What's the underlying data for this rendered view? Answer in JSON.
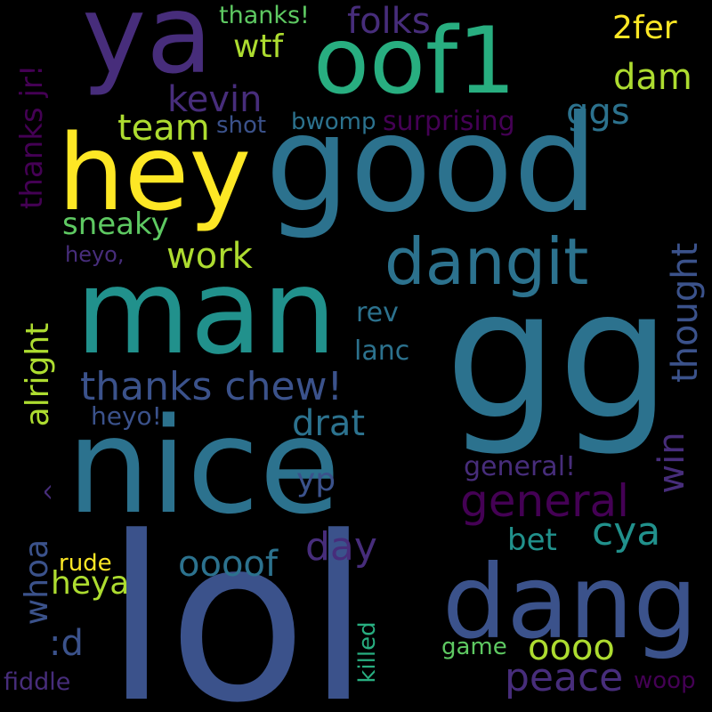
{
  "palette": {
    "background": "#000000",
    "dark_purple": "#440154",
    "purple": "#472d7b",
    "indigo": "#3b528b",
    "blue": "#2c728e",
    "teal": "#21918c",
    "green_teal": "#28ae80",
    "green": "#5ec962",
    "lime": "#addc30",
    "yellow": "#fde725"
  },
  "words": {
    "lol": "lol",
    "gg": "gg",
    "good": "good",
    "nice": "nice",
    "man": "man",
    "hey": "hey",
    "ya": "ya",
    "oof1": "oof1",
    "dang": "dang",
    "dangit": "dangit",
    "thanks_chew": "thanks chew!",
    "general": "general",
    "general_excl": "general!",
    "cya": "cya",
    "peace": "peace",
    "oooof": "oooof",
    "oooo": "oooo",
    "day": "day",
    "bet": "bet",
    "heya": "heya",
    "drat": "drat",
    "yp": "yp",
    "heyo_excl": "heyo!",
    "heyo_comma": "heyo,",
    "rev": "rev",
    "lanc": "lanc",
    "work": "work",
    "sneaky": "sneaky",
    "team": "team",
    "shot": "shot",
    "bwomp": "bwomp",
    "surprising": "surprising",
    "kevin": "kevin",
    "ggs": "ggs",
    "dam": "dam",
    "wtf": "wtf",
    "folks": "folks",
    "thanks_excl": "thanks!",
    "twofer": "2fer",
    "rude": "rude",
    "game": "game",
    "woop": "woop",
    "fiddle": "fiddle",
    "colon_d": ":d",
    "thanks_jr": "thanks jr!",
    "alright": "alright",
    "whoa": "whoa",
    "caret": "^",
    "thought": "thought",
    "win": "win",
    "killed": "killed"
  }
}
